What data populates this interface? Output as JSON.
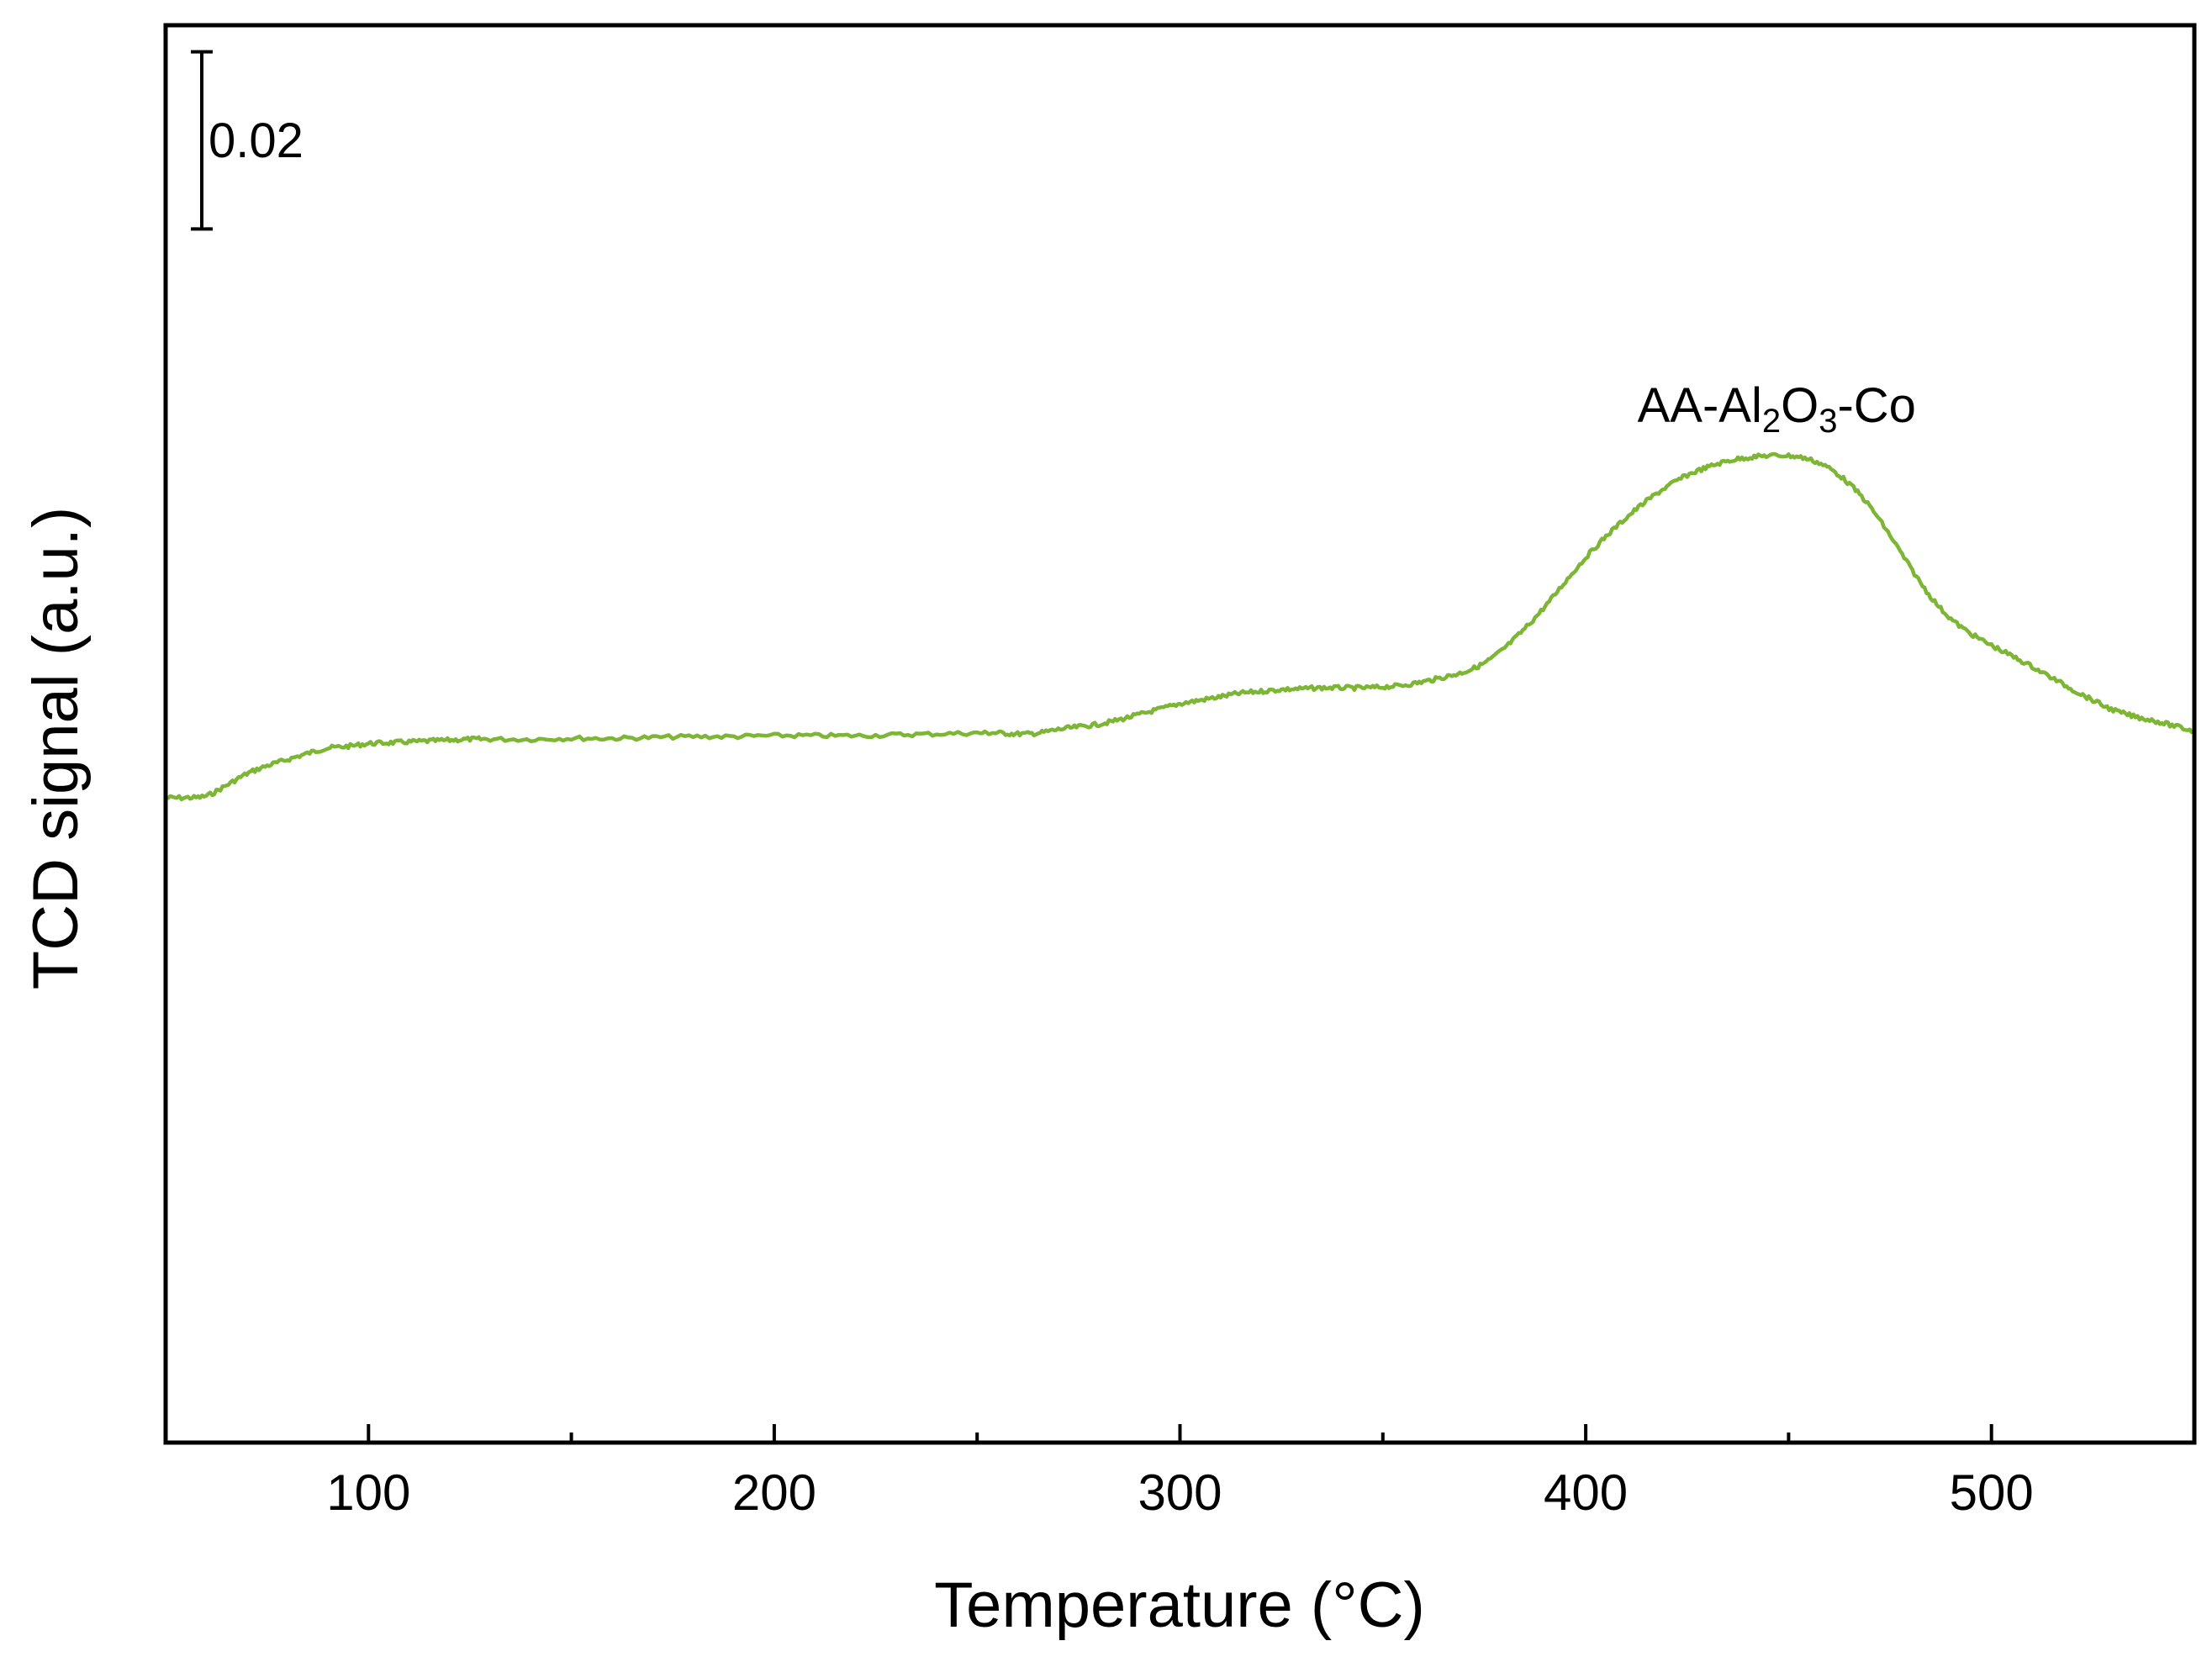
{
  "chart_data": {
    "type": "line",
    "title": "",
    "xlabel": "Temperature (°C)",
    "ylabel": "TCD signal (a.u.)",
    "xlim": [
      50,
      550
    ],
    "ylim": [
      -0.11,
      0.05
    ],
    "x_ticks": [
      100,
      200,
      300,
      400,
      500
    ],
    "x_minor_ticks": [
      150,
      250,
      350,
      450
    ],
    "x_tick_labels": [
      "100",
      "200",
      "300",
      "400",
      "500"
    ],
    "y_ticks_shown": false,
    "grid": false,
    "legend": "none",
    "scale_bar": {
      "value": 0.02,
      "label": "0.02",
      "y_from": 0.027,
      "y_to": 0.047
    },
    "series": [
      {
        "label_parts": [
          "AA-Al",
          "2",
          "O",
          "3",
          "-Co"
        ],
        "label_position": "above peak",
        "color": "#7db534",
        "x": [
          50,
          55,
          60,
          65,
          70,
          75,
          80,
          85,
          90,
          95,
          100,
          105,
          110,
          115,
          120,
          125,
          130,
          140,
          150,
          160,
          170,
          180,
          190,
          200,
          210,
          220,
          230,
          240,
          250,
          255,
          260,
          265,
          270,
          275,
          280,
          285,
          290,
          295,
          300,
          305,
          310,
          315,
          320,
          325,
          330,
          335,
          340,
          345,
          350,
          355,
          360,
          365,
          370,
          375,
          380,
          385,
          390,
          395,
          400,
          405,
          410,
          415,
          420,
          425,
          430,
          435,
          440,
          445,
          450,
          455,
          460,
          465,
          470,
          475,
          480,
          485,
          490,
          495,
          500,
          505,
          510,
          515,
          520,
          525,
          530,
          535,
          540,
          545,
          550
        ],
        "y": [
          -0.0372,
          -0.0372,
          -0.037,
          -0.0358,
          -0.0345,
          -0.0336,
          -0.0329,
          -0.0322,
          -0.0316,
          -0.0314,
          -0.0311,
          -0.031,
          -0.0309,
          -0.0308,
          -0.0307,
          -0.0306,
          -0.0306,
          -0.0306,
          -0.0305,
          -0.0305,
          -0.0304,
          -0.0303,
          -0.0303,
          -0.0302,
          -0.0302,
          -0.0302,
          -0.0301,
          -0.03,
          -0.0299,
          -0.0299,
          -0.03,
          -0.0299,
          -0.0295,
          -0.0292,
          -0.0289,
          -0.0284,
          -0.0278,
          -0.0272,
          -0.0266,
          -0.0262,
          -0.0258,
          -0.0254,
          -0.0252,
          -0.025,
          -0.0249,
          -0.0248,
          -0.0248,
          -0.0248,
          -0.0247,
          -0.0245,
          -0.0241,
          -0.0236,
          -0.023,
          -0.022,
          -0.0203,
          -0.0181,
          -0.0156,
          -0.0128,
          -0.0101,
          -0.0077,
          -0.0056,
          -0.0037,
          -0.0021,
          -0.0008,
          0.0001,
          0.0008,
          0.0012,
          0.0014,
          0.0014,
          0.001,
          0.0,
          -0.0018,
          -0.0043,
          -0.0076,
          -0.0112,
          -0.0145,
          -0.017,
          -0.0187,
          -0.02,
          -0.0212,
          -0.0224,
          -0.0237,
          -0.025,
          -0.0262,
          -0.0273,
          -0.028,
          -0.0285,
          -0.0291,
          -0.0297
        ]
      }
    ]
  }
}
